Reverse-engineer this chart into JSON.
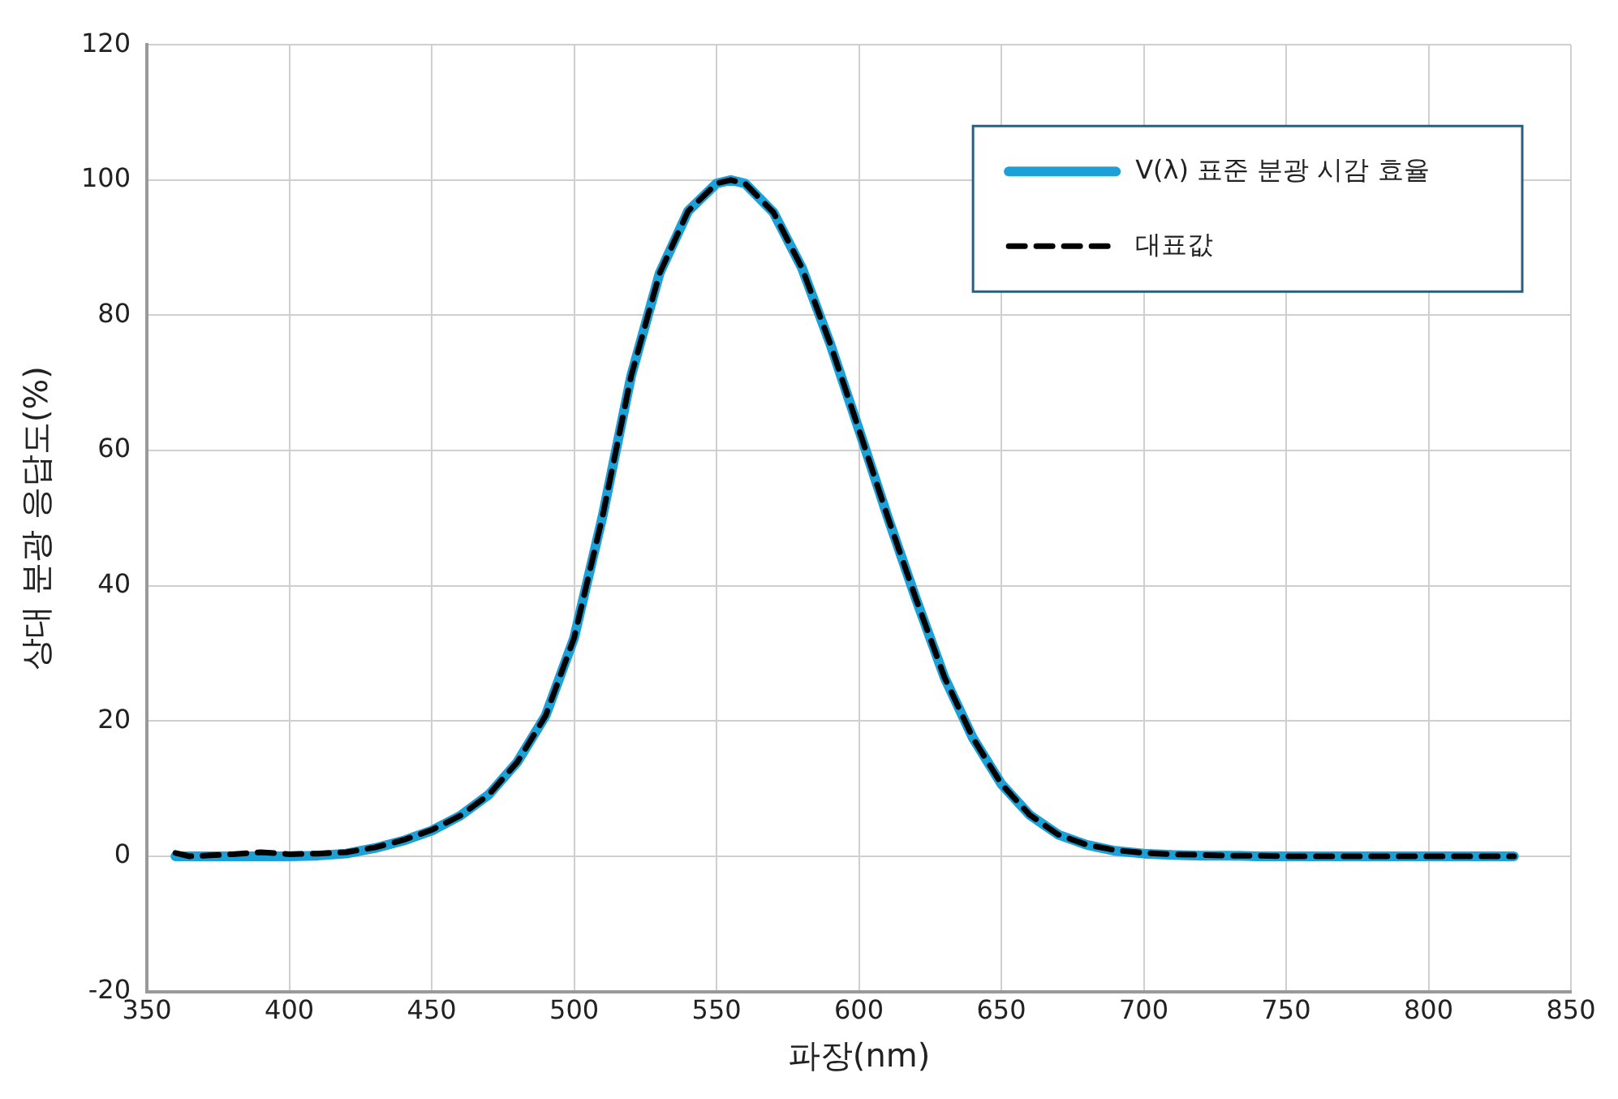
{
  "chart_data": {
    "type": "line",
    "xlabel": "파장(nm)",
    "ylabel": "상대 분광 응답도(%)",
    "x": [
      360,
      365,
      370,
      380,
      390,
      400,
      410,
      420,
      430,
      440,
      450,
      460,
      470,
      480,
      490,
      500,
      510,
      520,
      530,
      540,
      550,
      555,
      560,
      570,
      580,
      590,
      600,
      610,
      620,
      630,
      640,
      650,
      660,
      670,
      680,
      690,
      700,
      710,
      720,
      730,
      740,
      750,
      760,
      770,
      780,
      790,
      800,
      810,
      820,
      830
    ],
    "series": [
      {
        "name": "V(λ) 표준 분광 시감 효율",
        "color": "#1ba1d8",
        "line_style": "solid",
        "values": [
          0,
          0,
          0,
          0,
          0,
          0,
          0.1,
          0.4,
          1.2,
          2.3,
          3.8,
          6,
          9.1,
          13.9,
          20.8,
          32.3,
          50.3,
          71,
          86.2,
          95.4,
          99.5,
          100,
          99.5,
          95.2,
          87,
          75.7,
          63.1,
          50.3,
          38.1,
          26.5,
          17.5,
          10.7,
          6.1,
          3.2,
          1.7,
          0.8,
          0.4,
          0.2,
          0.1,
          0.1,
          0,
          0,
          0,
          0,
          0,
          0,
          0,
          0,
          0,
          0
        ]
      },
      {
        "name": "대표값",
        "color": "#000000",
        "line_style": "dashed",
        "values": [
          0.5,
          0,
          0.1,
          0.3,
          0.6,
          0.3,
          0.4,
          0.6,
          1.3,
          2.4,
          3.9,
          6,
          9.1,
          13.9,
          20.8,
          32.3,
          50.3,
          71,
          86.2,
          95.4,
          99.5,
          100,
          99.5,
          95.2,
          87,
          75.7,
          63.1,
          50.3,
          38.1,
          26.5,
          17.5,
          10.7,
          6.1,
          3.2,
          1.7,
          0.9,
          0.5,
          0.3,
          0.2,
          0.1,
          0.1,
          0,
          0,
          0,
          0,
          0,
          0,
          0,
          0,
          0
        ]
      }
    ],
    "xlim": [
      350,
      850
    ],
    "xticks": [
      350,
      400,
      450,
      500,
      550,
      600,
      650,
      700,
      750,
      800,
      850
    ],
    "ylim": [
      -20,
      120
    ],
    "yticks": [
      -20,
      0,
      20,
      40,
      60,
      80,
      100,
      120
    ],
    "grid": true,
    "legend": "top right",
    "marker": "none"
  }
}
